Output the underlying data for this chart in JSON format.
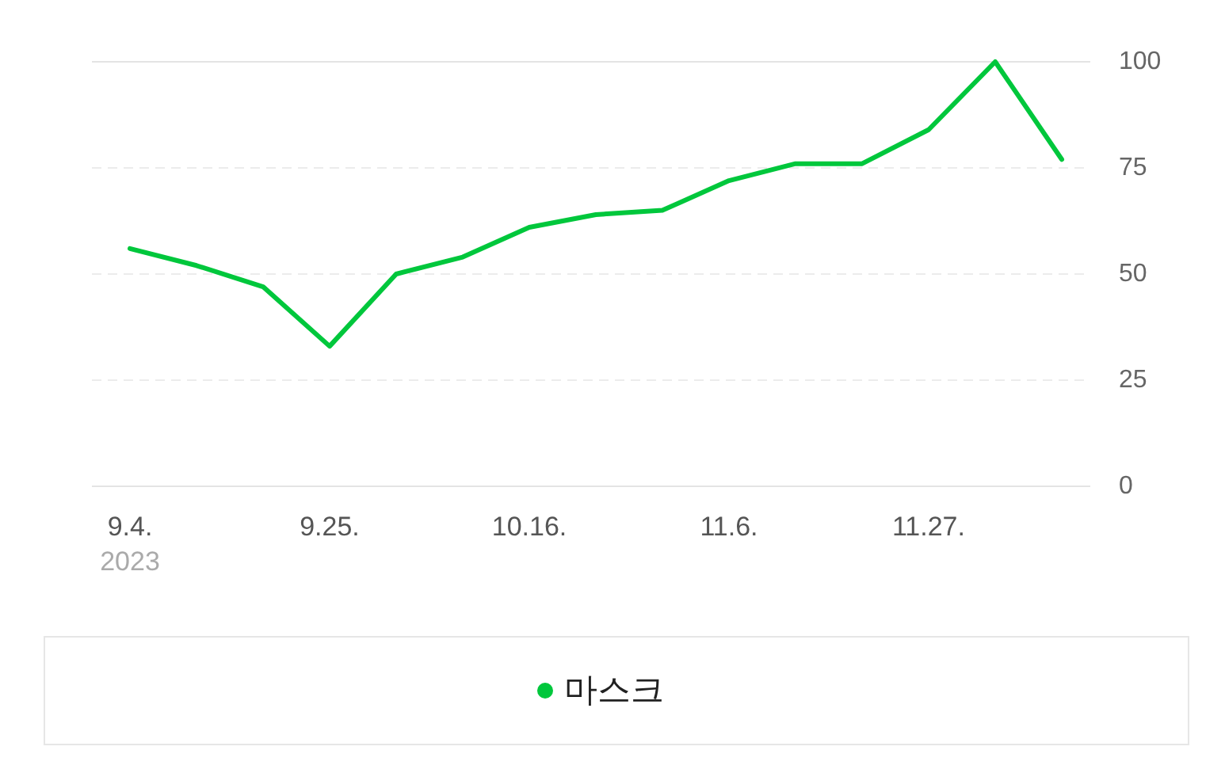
{
  "chart_data": {
    "type": "line",
    "x": [
      "2023-09-04",
      "2023-09-11",
      "2023-09-18",
      "2023-09-25",
      "2023-10-02",
      "2023-10-09",
      "2023-10-16",
      "2023-10-23",
      "2023-10-30",
      "2023-11-06",
      "2023-11-13",
      "2023-11-20",
      "2023-11-27",
      "2023-12-04",
      "2023-12-11"
    ],
    "series": [
      {
        "name": "마스크",
        "color": "#00c73c",
        "values": [
          56,
          52,
          47,
          33,
          50,
          54,
          61,
          64,
          65,
          72,
          76,
          76,
          84,
          100,
          77
        ]
      }
    ],
    "xlim": [
      "2023-08-31",
      "2023-12-14"
    ],
    "xticks": [
      {
        "value": "2023-09-04",
        "label": "9.4."
      },
      {
        "value": "2023-09-25",
        "label": "9.25."
      },
      {
        "value": "2023-10-16",
        "label": "10.16."
      },
      {
        "value": "2023-11-06",
        "label": "11.6."
      },
      {
        "value": "2023-11-27",
        "label": "11.27."
      }
    ],
    "ylim": [
      0,
      100
    ],
    "yticks": [
      0,
      25,
      50,
      75,
      100
    ],
    "annotations": [
      "2023"
    ],
    "grid": "y",
    "legend": "bottom",
    "marker": "none",
    "line_style": "solid"
  }
}
